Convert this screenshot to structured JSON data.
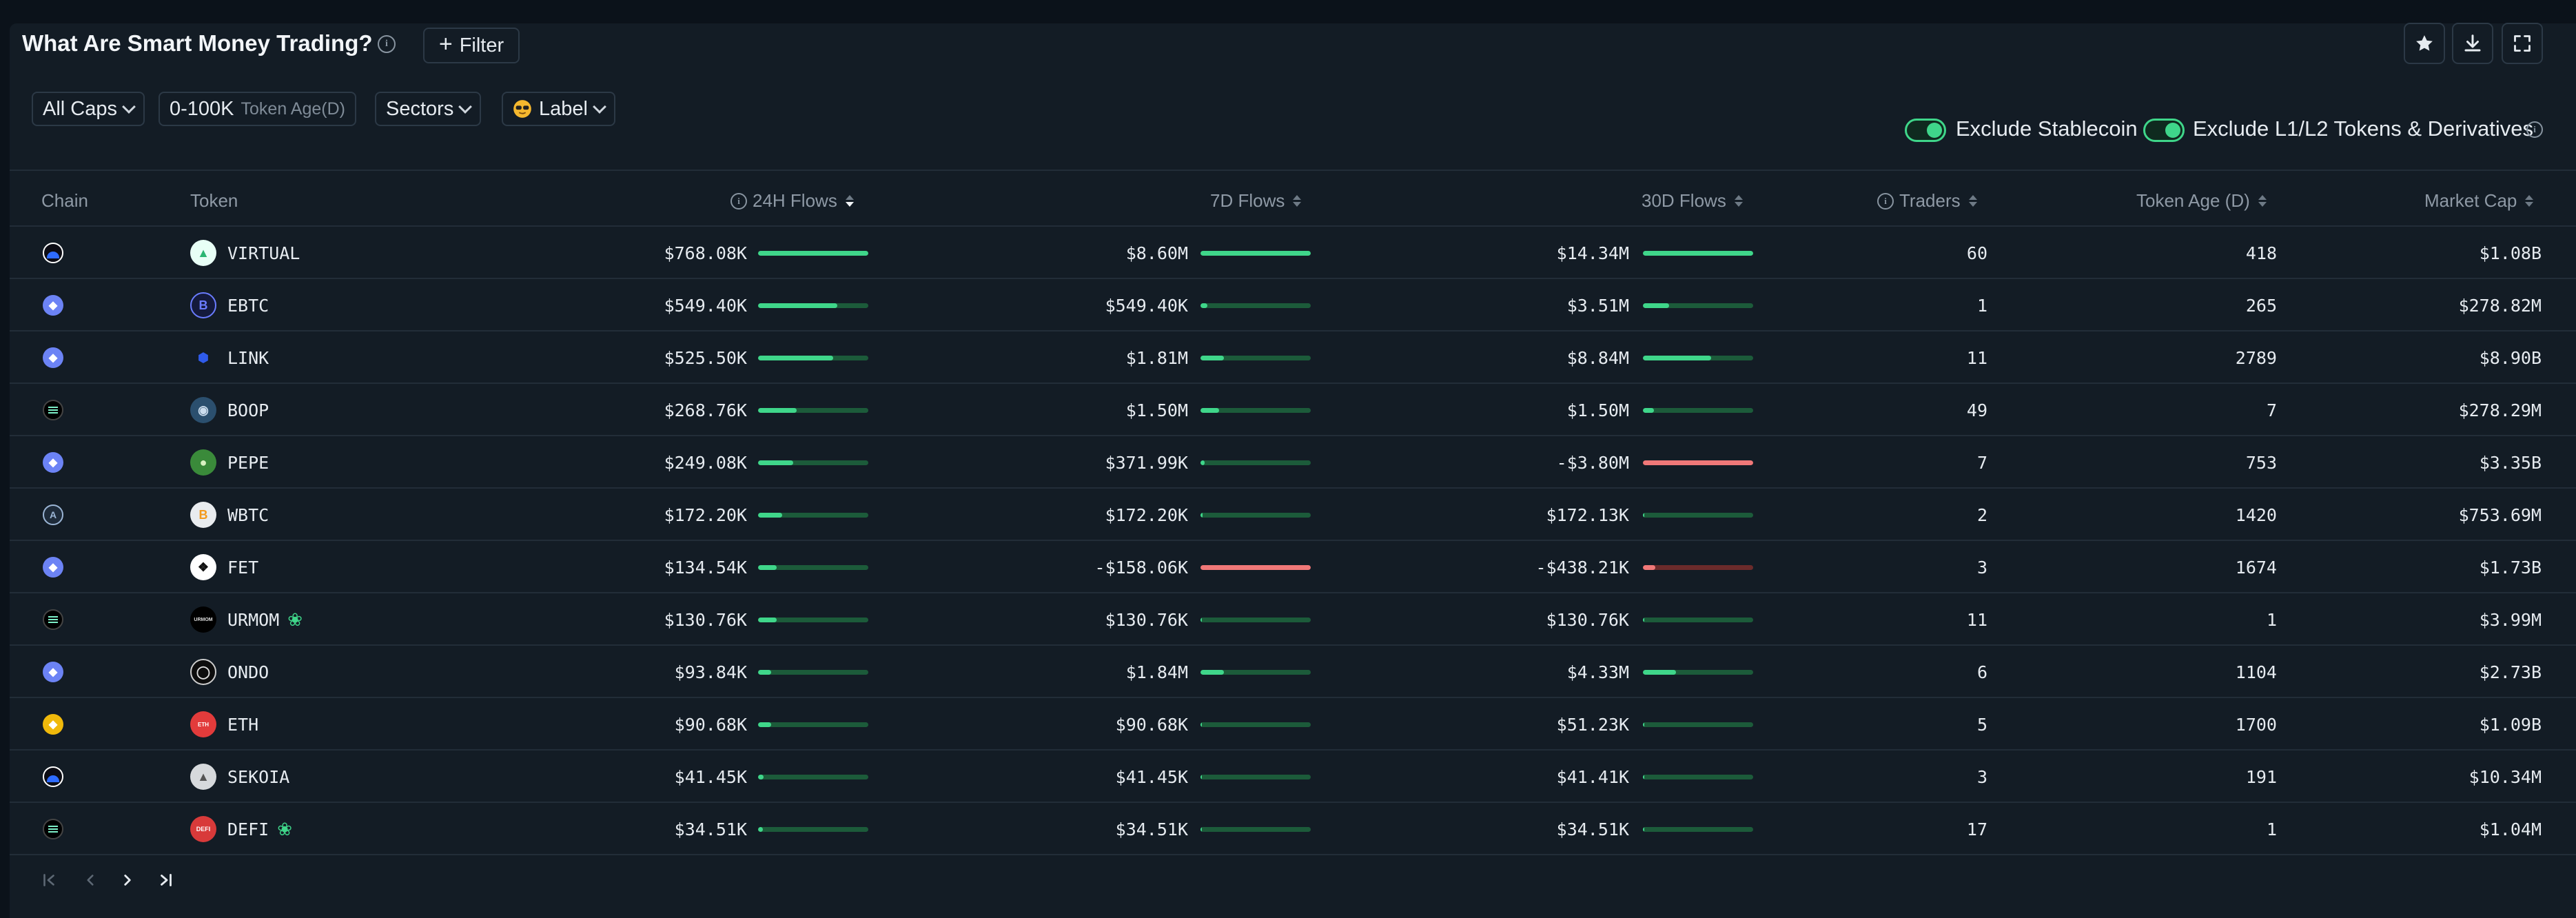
{
  "header": {
    "title": "What Are Smart Money Trading?",
    "filter_label": "Filter"
  },
  "filters": {
    "caps": "All Caps",
    "token_age_range": "0-100K",
    "token_age_label": "Token Age(D)",
    "sectors": "Sectors",
    "label": "Label",
    "exclude_stablecoin": "Exclude Stablecoin",
    "exclude_l1l2": "Exclude L1/L2 Tokens & Derivatives",
    "exclude_stablecoin_on": true,
    "exclude_l1l2_on": true
  },
  "columns": {
    "chain": "Chain",
    "token": "Token",
    "flows_24h": "24H Flows",
    "flows_7d": "7D Flows",
    "flows_30d": "30D Flows",
    "traders": "Traders",
    "token_age": "Token Age (D)",
    "market_cap": "Market Cap"
  },
  "rows": [
    {
      "chain": "base",
      "token": "VIRTUAL",
      "token_icon": "virtual-icon",
      "new": false,
      "f24": "$768.08K",
      "b24": 1.0,
      "f7": "$8.60M",
      "b7": 1.0,
      "f30": "$14.34M",
      "b30": 1.0,
      "traders": "60",
      "age": "418",
      "mcap": "$1.08B"
    },
    {
      "chain": "ethereum",
      "token": "EBTC",
      "token_icon": "ebtc-icon",
      "new": false,
      "f24": "$549.40K",
      "b24": 0.72,
      "f7": "$549.40K",
      "b7": 0.06,
      "f30": "$3.51M",
      "b30": 0.24,
      "traders": "1",
      "age": "265",
      "mcap": "$278.82M"
    },
    {
      "chain": "ethereum",
      "token": "LINK",
      "token_icon": "link-icon",
      "new": false,
      "f24": "$525.50K",
      "b24": 0.68,
      "f7": "$1.81M",
      "b7": 0.21,
      "f30": "$8.84M",
      "b30": 0.62,
      "traders": "11",
      "age": "2789",
      "mcap": "$8.90B"
    },
    {
      "chain": "solana",
      "token": "BOOP",
      "token_icon": "boop-icon",
      "new": false,
      "f24": "$268.76K",
      "b24": 0.35,
      "f7": "$1.50M",
      "b7": 0.17,
      "f30": "$1.50M",
      "b30": 0.1,
      "traders": "49",
      "age": "7",
      "mcap": "$278.29M"
    },
    {
      "chain": "ethereum",
      "token": "PEPE",
      "token_icon": "pepe-icon",
      "new": false,
      "f24": "$249.08K",
      "b24": 0.32,
      "f7": "$371.99K",
      "b7": 0.04,
      "f30": "-$3.80M",
      "b30": 1.0,
      "neg30": true,
      "traders": "7",
      "age": "753",
      "mcap": "$3.35B"
    },
    {
      "chain": "arbitrum",
      "token": "WBTC",
      "token_icon": "wbtc-icon",
      "new": false,
      "f24": "$172.20K",
      "b24": 0.22,
      "f7": "$172.20K",
      "b7": 0.02,
      "f30": "$172.13K",
      "b30": 0.01,
      "traders": "2",
      "age": "1420",
      "mcap": "$753.69M"
    },
    {
      "chain": "ethereum",
      "token": "FET",
      "token_icon": "fet-icon",
      "new": false,
      "f24": "$134.54K",
      "b24": 0.17,
      "f7": "-$158.06K",
      "b7": 1.0,
      "neg7": true,
      "f30": "-$438.21K",
      "b30": 0.11,
      "neg30": true,
      "traders": "3",
      "age": "1674",
      "mcap": "$1.73B"
    },
    {
      "chain": "solana",
      "token": "URMOM",
      "token_icon": "urmom-icon",
      "new": true,
      "f24": "$130.76K",
      "b24": 0.17,
      "f7": "$130.76K",
      "b7": 0.015,
      "f30": "$130.76K",
      "b30": 0.01,
      "traders": "11",
      "age": "1",
      "mcap": "$3.99M"
    },
    {
      "chain": "ethereum",
      "token": "ONDO",
      "token_icon": "ondo-icon",
      "new": false,
      "f24": "$93.84K",
      "b24": 0.12,
      "f7": "$1.84M",
      "b7": 0.21,
      "f30": "$4.33M",
      "b30": 0.3,
      "traders": "6",
      "age": "1104",
      "mcap": "$2.73B"
    },
    {
      "chain": "bsc",
      "token": "ETH",
      "token_icon": "eth-icon",
      "new": false,
      "f24": "$90.68K",
      "b24": 0.12,
      "f7": "$90.68K",
      "b7": 0.01,
      "f30": "$51.23K",
      "b30": 0.004,
      "traders": "5",
      "age": "1700",
      "mcap": "$1.09B"
    },
    {
      "chain": "base",
      "token": "SEKOIA",
      "token_icon": "sekoia-icon",
      "new": false,
      "f24": "$41.45K",
      "b24": 0.05,
      "f7": "$41.45K",
      "b7": 0.005,
      "f30": "$41.41K",
      "b30": 0.003,
      "traders": "3",
      "age": "191",
      "mcap": "$10.34M"
    },
    {
      "chain": "solana",
      "token": "DEFI",
      "token_icon": "defi-icon",
      "new": true,
      "f24": "$34.51K",
      "b24": 0.045,
      "f7": "$34.51K",
      "b7": 0.004,
      "f30": "$34.51K",
      "b30": 0.002,
      "traders": "17",
      "age": "1",
      "mcap": "$1.04M"
    }
  ],
  "colors": {
    "positive": "#3fd68a",
    "positive_track": "#1c5b3a",
    "negative": "#f07878",
    "negative_track": "#6b2b2b"
  }
}
